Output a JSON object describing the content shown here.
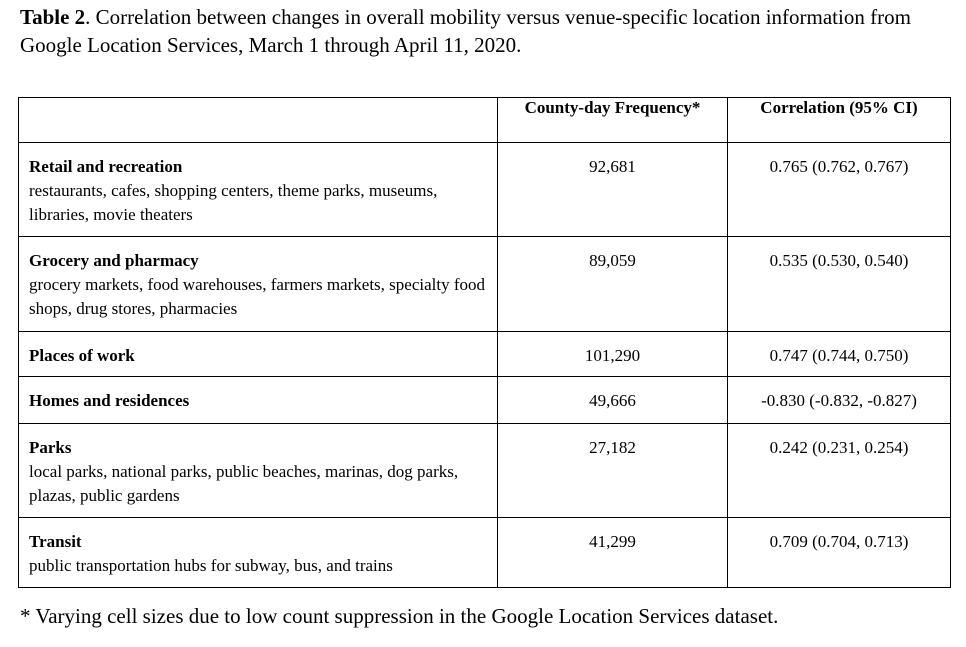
{
  "caption": {
    "label": "Table 2",
    "text": ". Correlation between changes in overall mobility versus venue-specific location information from Google Location Services, March 1 through April 11, 2020."
  },
  "table": {
    "headers": [
      "",
      "County-day Frequency*",
      "Correlation (95% CI)"
    ],
    "rows": [
      {
        "name": "Retail and recreation",
        "desc": "restaurants, cafes, shopping centers, theme parks, museums, libraries, movie theaters",
        "frequency": "92,681",
        "correlation": "0.765 (0.762, 0.767)"
      },
      {
        "name": "Grocery and pharmacy",
        "desc": "grocery markets, food warehouses, farmers markets, specialty food shops, drug stores, pharmacies",
        "frequency": "89,059",
        "correlation": "0.535 (0.530, 0.540)"
      },
      {
        "name": "Places of work",
        "desc": "",
        "frequency": "101,290",
        "correlation": "0.747 (0.744, 0.750)"
      },
      {
        "name": "Homes and residences",
        "desc": "",
        "frequency": "49,666",
        "correlation": "-0.830 (-0.832, -0.827)"
      },
      {
        "name": "Parks",
        "desc": "local parks, national parks, public beaches, marinas, dog parks, plazas, public gardens",
        "frequency": "27,182",
        "correlation": "0.242 (0.231, 0.254)"
      },
      {
        "name": "Transit",
        "desc": "public transportation hubs for subway, bus, and trains",
        "frequency": "41,299",
        "correlation": "0.709 (0.704, 0.713)"
      }
    ]
  },
  "footnote": "* Varying cell sizes due to low count suppression in the Google Location Services dataset."
}
